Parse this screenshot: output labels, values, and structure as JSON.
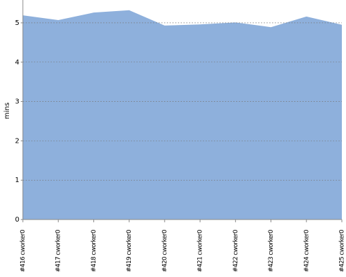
{
  "chart_data": {
    "type": "area",
    "y_label": "mins",
    "categories": [
      "#416 cworker0",
      "#417 cworker0",
      "#418 cworker0",
      "#419 cworker0",
      "#420 cworker0",
      "#421 cworker0",
      "#422 cworker0",
      "#423 cworker0",
      "#424 cworker0",
      "#425 cworker0"
    ],
    "values": [
      5.19,
      5.07,
      5.26,
      5.32,
      4.93,
      4.96,
      5.01,
      4.89,
      5.16,
      4.95
    ],
    "color": "#8eb0dc",
    "ylim": [
      0,
      5.58
    ],
    "yticks": [
      0,
      1,
      2,
      3,
      4,
      5
    ],
    "grid": true
  }
}
